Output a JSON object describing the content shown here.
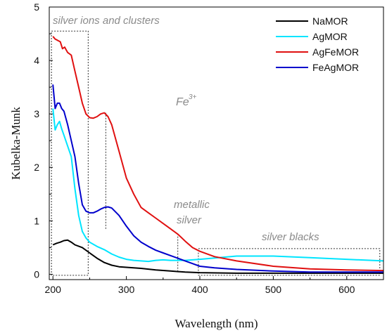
{
  "chart_data": {
    "type": "line",
    "title": "",
    "xlabel": "Wavelength (nm)",
    "ylabel": "Kubelka-Munk",
    "xlim": [
      195,
      650
    ],
    "ylim": [
      -0.1,
      5
    ],
    "xticks": [
      200,
      300,
      400,
      500,
      600
    ],
    "yticks": [
      0,
      1,
      2,
      3,
      4,
      5
    ],
    "grid": false,
    "legend_position": "top-right",
    "series": [
      {
        "name": "NaMOR",
        "color": "#000000",
        "points": [
          [
            200,
            0.55
          ],
          [
            205,
            0.58
          ],
          [
            210,
            0.6
          ],
          [
            215,
            0.63
          ],
          [
            220,
            0.64
          ],
          [
            225,
            0.6
          ],
          [
            230,
            0.55
          ],
          [
            240,
            0.5
          ],
          [
            250,
            0.4
          ],
          [
            260,
            0.3
          ],
          [
            270,
            0.22
          ],
          [
            280,
            0.17
          ],
          [
            290,
            0.14
          ],
          [
            300,
            0.13
          ],
          [
            320,
            0.11
          ],
          [
            340,
            0.08
          ],
          [
            360,
            0.06
          ],
          [
            380,
            0.04
          ],
          [
            400,
            0.03
          ],
          [
            450,
            0.02
          ],
          [
            500,
            0.02
          ],
          [
            550,
            0.02
          ],
          [
            600,
            0.02
          ],
          [
            650,
            0.02
          ]
        ]
      },
      {
        "name": "AgMOR",
        "color": "#00e5ff",
        "points": [
          [
            200,
            3.1
          ],
          [
            203,
            2.7
          ],
          [
            206,
            2.8
          ],
          [
            209,
            2.86
          ],
          [
            212,
            2.72
          ],
          [
            215,
            2.6
          ],
          [
            220,
            2.4
          ],
          [
            225,
            2.2
          ],
          [
            230,
            1.6
          ],
          [
            235,
            1.1
          ],
          [
            240,
            0.8
          ],
          [
            245,
            0.68
          ],
          [
            250,
            0.6
          ],
          [
            260,
            0.52
          ],
          [
            270,
            0.46
          ],
          [
            280,
            0.38
          ],
          [
            290,
            0.32
          ],
          [
            300,
            0.28
          ],
          [
            310,
            0.26
          ],
          [
            320,
            0.25
          ],
          [
            330,
            0.24
          ],
          [
            340,
            0.26
          ],
          [
            350,
            0.27
          ],
          [
            360,
            0.26
          ],
          [
            380,
            0.26
          ],
          [
            400,
            0.28
          ],
          [
            450,
            0.34
          ],
          [
            500,
            0.34
          ],
          [
            550,
            0.31
          ],
          [
            600,
            0.28
          ],
          [
            650,
            0.25
          ]
        ]
      },
      {
        "name": "AgFeMOR",
        "color": "#e01010",
        "points": [
          [
            200,
            4.45
          ],
          [
            203,
            4.4
          ],
          [
            206,
            4.38
          ],
          [
            210,
            4.35
          ],
          [
            213,
            4.22
          ],
          [
            216,
            4.25
          ],
          [
            220,
            4.15
          ],
          [
            225,
            4.1
          ],
          [
            230,
            3.8
          ],
          [
            235,
            3.5
          ],
          [
            240,
            3.2
          ],
          [
            245,
            3.0
          ],
          [
            250,
            2.93
          ],
          [
            255,
            2.92
          ],
          [
            260,
            2.95
          ],
          [
            265,
            3.0
          ],
          [
            270,
            3.02
          ],
          [
            275,
            2.95
          ],
          [
            280,
            2.8
          ],
          [
            290,
            2.3
          ],
          [
            300,
            1.8
          ],
          [
            310,
            1.5
          ],
          [
            320,
            1.25
          ],
          [
            330,
            1.15
          ],
          [
            340,
            1.05
          ],
          [
            350,
            0.95
          ],
          [
            360,
            0.85
          ],
          [
            370,
            0.75
          ],
          [
            380,
            0.62
          ],
          [
            390,
            0.5
          ],
          [
            400,
            0.43
          ],
          [
            420,
            0.33
          ],
          [
            450,
            0.25
          ],
          [
            500,
            0.15
          ],
          [
            550,
            0.1
          ],
          [
            600,
            0.08
          ],
          [
            650,
            0.07
          ]
        ]
      },
      {
        "name": "FeAgMOR",
        "color": "#0000cc",
        "points": [
          [
            200,
            3.55
          ],
          [
            203,
            3.1
          ],
          [
            206,
            3.2
          ],
          [
            209,
            3.2
          ],
          [
            212,
            3.1
          ],
          [
            215,
            3.05
          ],
          [
            220,
            2.8
          ],
          [
            225,
            2.5
          ],
          [
            230,
            2.2
          ],
          [
            235,
            1.7
          ],
          [
            240,
            1.3
          ],
          [
            245,
            1.18
          ],
          [
            250,
            1.15
          ],
          [
            255,
            1.15
          ],
          [
            260,
            1.18
          ],
          [
            265,
            1.22
          ],
          [
            270,
            1.25
          ],
          [
            275,
            1.26
          ],
          [
            280,
            1.24
          ],
          [
            290,
            1.1
          ],
          [
            300,
            0.9
          ],
          [
            310,
            0.72
          ],
          [
            320,
            0.6
          ],
          [
            330,
            0.52
          ],
          [
            340,
            0.45
          ],
          [
            350,
            0.4
          ],
          [
            360,
            0.35
          ],
          [
            370,
            0.3
          ],
          [
            380,
            0.25
          ],
          [
            390,
            0.2
          ],
          [
            400,
            0.15
          ],
          [
            420,
            0.12
          ],
          [
            450,
            0.09
          ],
          [
            500,
            0.06
          ],
          [
            550,
            0.04
          ],
          [
            600,
            0.04
          ],
          [
            650,
            0.04
          ]
        ]
      }
    ],
    "annotations": [
      {
        "text": "silver ions and clusters"
      },
      {
        "text": "Fe"
      },
      {
        "text": "3+"
      },
      {
        "text": "metallic"
      },
      {
        "text": "silver"
      },
      {
        "text": "silver blacks"
      }
    ]
  }
}
